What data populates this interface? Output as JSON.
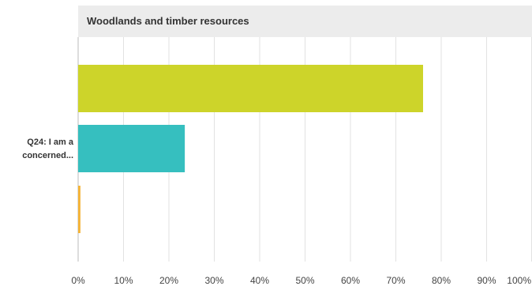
{
  "chart_data": {
    "type": "bar",
    "orientation": "horizontal",
    "title": "Woodlands and timber resources",
    "category": "Q24: I am a concerned...",
    "series": [
      {
        "value": 76,
        "color": "#cdd42a"
      },
      {
        "value": 23.5,
        "color": "#36bfbf"
      },
      {
        "value": 0.5,
        "color": "#f5b335"
      }
    ],
    "xlim": [
      0,
      100
    ],
    "xticks": [
      "0%",
      "10%",
      "20%",
      "30%",
      "40%",
      "50%",
      "60%",
      "70%",
      "80%",
      "90%",
      "100%"
    ],
    "grid": true
  }
}
